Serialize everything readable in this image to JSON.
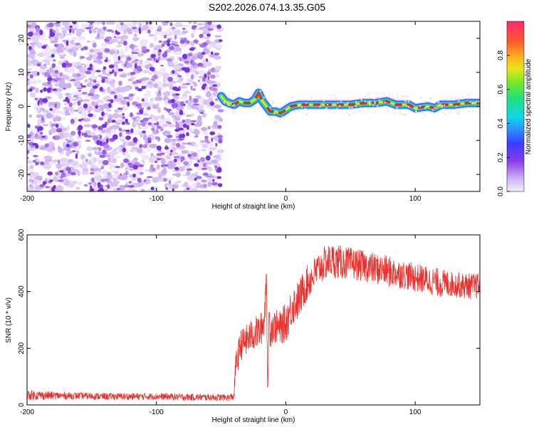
{
  "title": "S202.2026.074.13.35.G05",
  "colors": {
    "noise_purple": "#7a2fe0",
    "noise_light": "#d9c6f5",
    "snr_line": "#e8312c",
    "ridge_core": "#e0283a",
    "ridge_green": "#22d86a",
    "ridge_cyan": "#15d4e8",
    "ridge_blue": "#3355ff"
  },
  "chart_data": [
    {
      "type": "heatmap",
      "xlabel": "Height of straight line (km)",
      "ylabel": "Frequency (Hz)",
      "xlim": [
        -200,
        150
      ],
      "ylim": [
        -25,
        25
      ],
      "x_ticks": [
        -200,
        -100,
        0,
        100
      ],
      "x_tick_labels": [
        "-200",
        "-100",
        "0",
        "100"
      ],
      "y_ticks": [
        -20,
        -10,
        0,
        10,
        20
      ],
      "y_tick_labels": [
        "-20",
        "-10",
        "0",
        "10",
        "20"
      ],
      "noise_region_km": [
        -200,
        -50
      ],
      "ridge": {
        "x": [
          -50,
          -47,
          -44,
          -40,
          -36,
          -32,
          -28,
          -24,
          -21,
          -18,
          -15,
          -12,
          -8,
          -4,
          0,
          4,
          10,
          20,
          30,
          40,
          50,
          60,
          70,
          78,
          85,
          90,
          95,
          100,
          110,
          115,
          120,
          130,
          140,
          150
        ],
        "y": [
          3,
          1.5,
          1,
          0.5,
          1.5,
          1,
          1,
          2,
          4,
          1.5,
          0,
          -1.5,
          -1.5,
          -2,
          -1,
          0,
          0.5,
          0.5,
          0.5,
          0.5,
          0.5,
          1,
          1,
          1.5,
          0.5,
          0.5,
          0.5,
          -0.5,
          0,
          -0.5,
          0.5,
          0.5,
          1,
          1
        ]
      },
      "colorbar": {
        "label": "Normalized spectral amplitude",
        "range": [
          0.0,
          1.0
        ],
        "ticks": [
          0.0,
          0.2,
          0.4,
          0.6,
          0.8
        ],
        "tick_labels": [
          "0.0",
          "0.2",
          "0.4",
          "0.6",
          "0.8"
        ]
      }
    },
    {
      "type": "line",
      "xlabel": "Height of straight line (km)",
      "ylabel": "SNR (10 * v/v)",
      "xlim": [
        -200,
        150
      ],
      "ylim": [
        0,
        600
      ],
      "x_ticks": [
        -200,
        -100,
        0,
        100
      ],
      "x_tick_labels": [
        "-200",
        "-100",
        "0",
        "100"
      ],
      "y_ticks": [
        0,
        200,
        400,
        600
      ],
      "y_tick_labels": [
        "0",
        "200",
        "400",
        "600"
      ],
      "series": [
        {
          "name": "SNR",
          "x": [
            -200,
            -180,
            -160,
            -140,
            -120,
            -100,
            -80,
            -60,
            -45,
            -40,
            -39,
            -35,
            -30,
            -25,
            -20,
            -17,
            -15,
            -14,
            -13,
            -12,
            -10,
            -5,
            0,
            5,
            10,
            15,
            20,
            25,
            30,
            35,
            40,
            50,
            60,
            70,
            80,
            90,
            100,
            110,
            120,
            130,
            140,
            150
          ],
          "values": [
            35,
            33,
            32,
            30,
            30,
            30,
            28,
            27,
            26,
            30,
            130,
            210,
            230,
            250,
            260,
            290,
            420,
            60,
            300,
            270,
            280,
            270,
            290,
            350,
            370,
            420,
            450,
            480,
            500,
            510,
            505,
            500,
            490,
            480,
            470,
            460,
            450,
            440,
            430,
            425,
            420,
            420
          ],
          "noise_amplitude": [
            18,
            14,
            12,
            12,
            12,
            12,
            12,
            12,
            12,
            14,
            50,
            55,
            55,
            60,
            60,
            60,
            90,
            10,
            70,
            70,
            60,
            60,
            70,
            70,
            70,
            65,
            60,
            60,
            60,
            60,
            60,
            55,
            55,
            55,
            55,
            50,
            50,
            50,
            50,
            45,
            45,
            45
          ]
        }
      ]
    }
  ]
}
